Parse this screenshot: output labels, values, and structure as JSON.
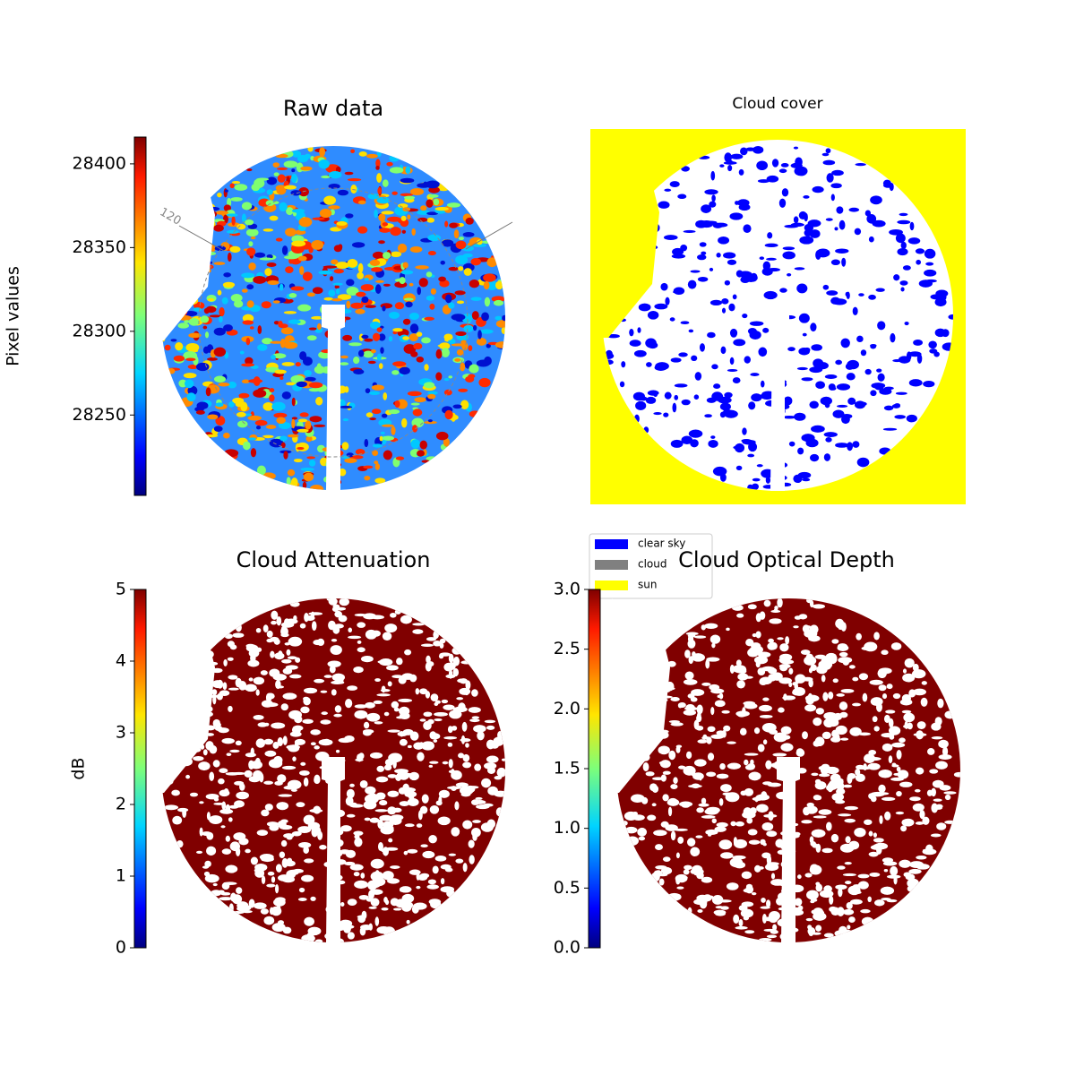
{
  "chart_data": [
    {
      "type": "image",
      "title": "Raw data",
      "cmap": "jet",
      "colorbar": {
        "label": "Pixel values",
        "lim": [
          28202,
          28416
        ],
        "ticks": [
          28250,
          28300,
          28350,
          28400
        ]
      },
      "annotations": [
        "120"
      ]
    },
    {
      "type": "image",
      "title": "Cloud cover",
      "series": [
        {
          "name": "clear sky",
          "color": "#0000ff"
        },
        {
          "name": "cloud",
          "color": "#808080"
        },
        {
          "name": "sun",
          "color": "#ffff00"
        }
      ]
    },
    {
      "type": "image",
      "title": "Cloud Attenuation",
      "cmap": "jet",
      "colorbar": {
        "label": "dB",
        "lim": [
          0,
          5
        ],
        "ticks": [
          0,
          1,
          2,
          3,
          4,
          5
        ]
      }
    },
    {
      "type": "image",
      "title": "Cloud Optical Depth",
      "cmap": "jet",
      "colorbar": {
        "lim": [
          0,
          3
        ],
        "ticks": [
          {
            "value": 0,
            "label": "0.0"
          },
          0.5,
          {
            "value": 1,
            "label": "1.0"
          },
          1.5,
          {
            "value": 2,
            "label": "2.0"
          },
          2.5,
          {
            "value": 3,
            "label": "3.0"
          }
        ]
      }
    }
  ]
}
